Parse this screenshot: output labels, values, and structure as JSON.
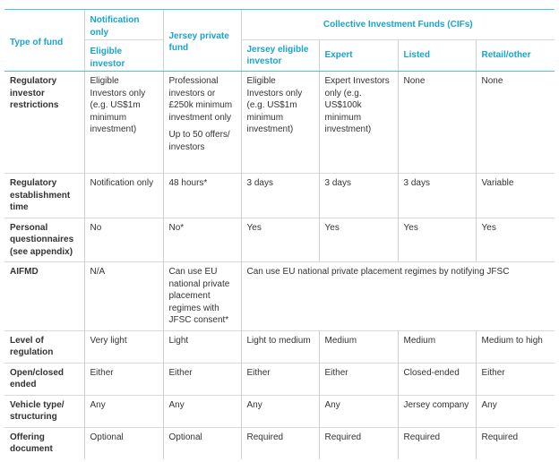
{
  "header": {
    "type_of_fund": "Type of fund",
    "notification_only": "Notification only",
    "eligible_investor": "Eligible investor",
    "jersey_private_fund": "Jersey private fund",
    "cifs": "Collective Investment Funds (CIFs)",
    "jersey_eligible_investor": "Jersey eligible investor",
    "expert": "Expert",
    "listed": "Listed",
    "retail_other": "Retail/other"
  },
  "rows": [
    {
      "label": "Regulatory investor restrictions",
      "cells": [
        "Eligible Investors only (e.g. US$1m minimum investment)",
        "Professional investors or £250k minimum investment only",
        "Eligible Investors only (e.g. US$1m minimum investment)",
        "Expert Investors only (e.g. US$100k minimum investment)",
        "None",
        "None"
      ],
      "jpf_extra": "Up to 50 offers/ investors"
    },
    {
      "label": "Regulatory establishment time",
      "cells": [
        "Notification only",
        "48 hours*",
        "3 days",
        "3 days",
        "3 days",
        "Variable"
      ]
    },
    {
      "label": "Personal questionnaires (see appendix)",
      "cells": [
        "No",
        "No*",
        "Yes",
        "Yes",
        "Yes",
        "Yes"
      ]
    },
    {
      "label": "AIFMD",
      "cells": [
        "N/A",
        "Can use EU national private placement regimes with JFSC consent*"
      ],
      "cif_span": "Can use EU national private placement regimes by notifying JFSC"
    },
    {
      "label": "Level of regulation",
      "cells": [
        "Very light",
        "Light",
        "Light to medium",
        "Medium",
        "Medium",
        "Medium to high"
      ]
    },
    {
      "label": "Open/closed ended",
      "cells": [
        "Either",
        "Either",
        "Either",
        "Either",
        "Closed-ended",
        "Either"
      ]
    },
    {
      "label": "Vehicle type/ structuring",
      "cells": [
        "Any",
        "Any",
        "Any",
        "Any",
        "Jersey company",
        "Any"
      ]
    },
    {
      "label": "Offering document",
      "cells": [
        "Optional",
        "Optional",
        "Required",
        "Required",
        "Required",
        "Required"
      ]
    }
  ],
  "colors": {
    "accent": "#1aa3cf",
    "rule": "#4ac3e6",
    "text": "#333333"
  }
}
